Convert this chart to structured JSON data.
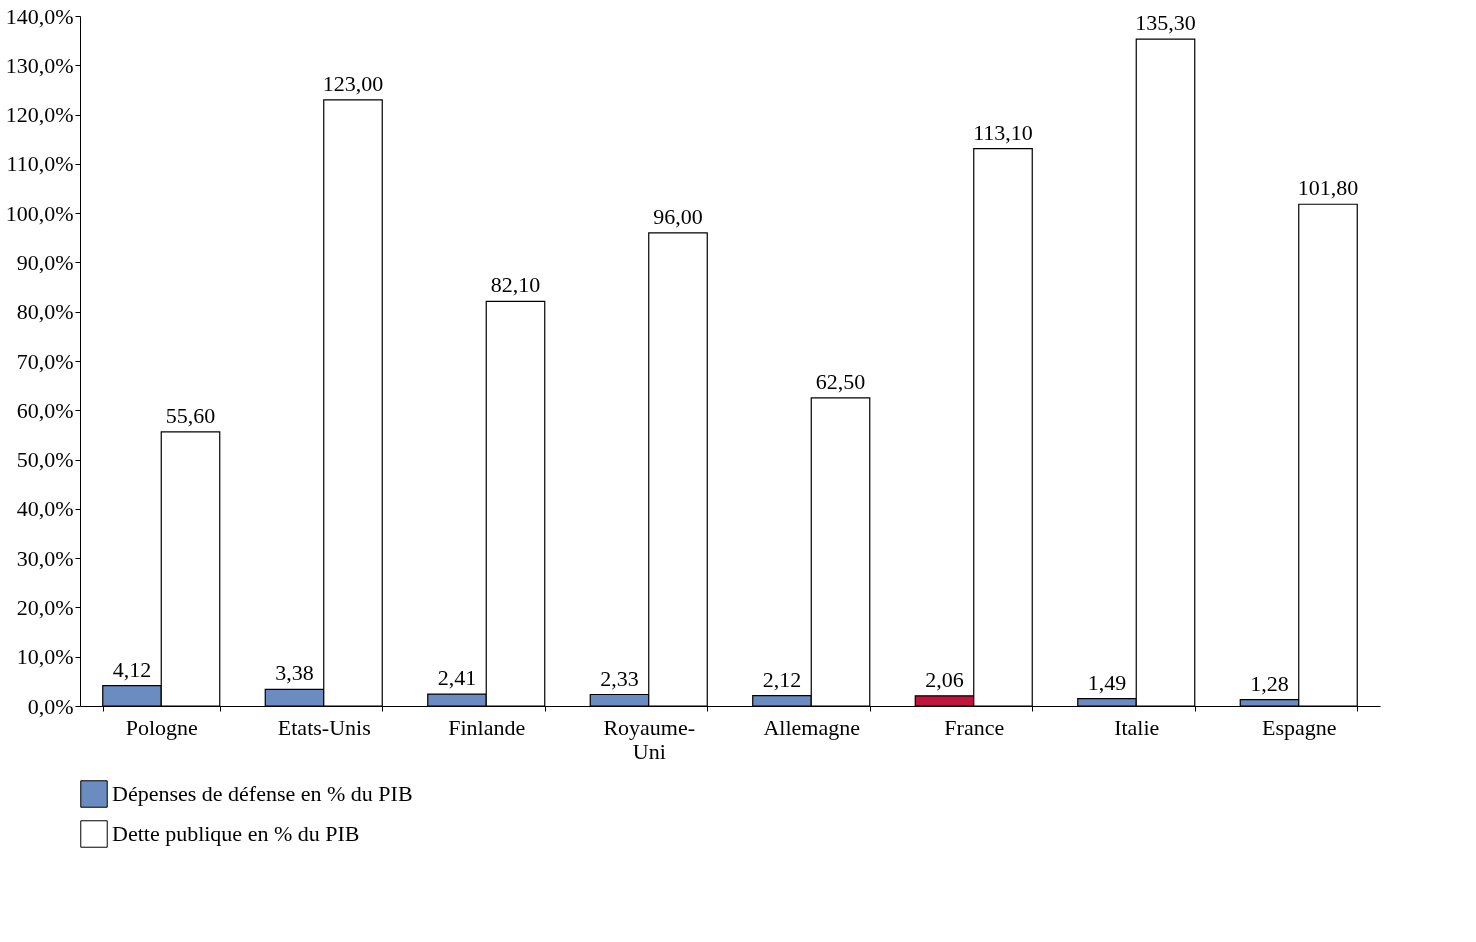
{
  "chart_data": {
    "type": "bar",
    "categories": [
      "Pologne",
      "Etats-Unis",
      "Finlande",
      "Royaume-Uni",
      "Allemagne",
      "France",
      "Italie",
      "Espagne"
    ],
    "series": [
      {
        "name": "Dépenses de défense en % du PIB",
        "color": "#6b8cc0",
        "colors": [
          "#6b8cc0",
          "#6b8cc0",
          "#6b8cc0",
          "#6b8cc0",
          "#6b8cc0",
          "#c0143c",
          "#6b8cc0",
          "#6b8cc0"
        ],
        "values": [
          4.12,
          3.38,
          2.41,
          2.33,
          2.12,
          2.06,
          1.49,
          1.28
        ],
        "value_labels": [
          "4,12",
          "3,38",
          "2,41",
          "2,33",
          "2,12",
          "2,06",
          "1,49",
          "1,28"
        ]
      },
      {
        "name": "Dette publique en % du PIB",
        "color": "#ffffff",
        "values": [
          55.6,
          123.0,
          82.1,
          96.0,
          62.5,
          113.1,
          135.3,
          101.8
        ],
        "value_labels": [
          "55,60",
          "123,00",
          "82,10",
          "96,00",
          "62,50",
          "113,10",
          "135,30",
          "101,80"
        ]
      }
    ],
    "ylim": [
      0,
      140
    ],
    "yticks": [
      {
        "value": 0,
        "label": "0,0%"
      },
      {
        "value": 10,
        "label": "10,0%"
      },
      {
        "value": 20,
        "label": "20,0%"
      },
      {
        "value": 30,
        "label": "30,0%"
      },
      {
        "value": 40,
        "label": "40,0%"
      },
      {
        "value": 50,
        "label": "50,0%"
      },
      {
        "value": 60,
        "label": "60,0%"
      },
      {
        "value": 70,
        "label": "70,0%"
      },
      {
        "value": 80,
        "label": "80,0%"
      },
      {
        "value": 90,
        "label": "90,0%"
      },
      {
        "value": 100,
        "label": "100,0%"
      },
      {
        "value": 110,
        "label": "110,0%"
      },
      {
        "value": 120,
        "label": "120,0%"
      },
      {
        "value": 130,
        "label": "130,0%"
      },
      {
        "value": 140,
        "label": "140,0%"
      }
    ],
    "grid": false,
    "legend": "bottom"
  }
}
